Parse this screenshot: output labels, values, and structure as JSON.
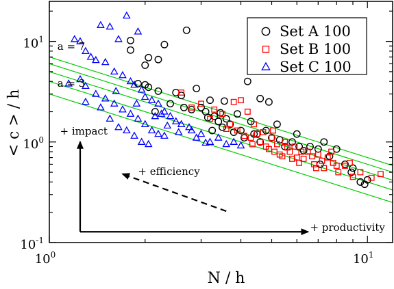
{
  "chart_data": {
    "type": "scatter",
    "xlabel": "N / h",
    "ylabel": "< c > / h",
    "xscale": "log",
    "yscale": "log",
    "xlim": [
      1,
      12
    ],
    "ylim": [
      0.1,
      25
    ],
    "grid": false,
    "legend_position": "top-right",
    "x_ticks": [
      {
        "base": "10",
        "exp": "0",
        "value": 1
      },
      {
        "base": "10",
        "exp": "1",
        "value": 10
      }
    ],
    "y_ticks": [
      {
        "base": "10",
        "exp": "-1",
        "value": 0.1
      },
      {
        "base": "10",
        "exp": "0",
        "value": 1
      },
      {
        "base": "10",
        "exp": "1",
        "value": 10
      }
    ],
    "reference_lines": {
      "color": "#00cc00",
      "slope": -1,
      "intercepts": [
        3,
        4,
        5,
        6,
        7
      ],
      "labels": [
        {
          "text": "a = 7",
          "a": 7
        },
        {
          "text": "a = 3",
          "a": 3
        }
      ]
    },
    "annotations": [
      {
        "text": "+ impact",
        "x": 1.08,
        "y": 1.18
      },
      {
        "text": "+ efficiency",
        "x": 1.9,
        "y": 0.47
      },
      {
        "text": "+ productivity",
        "x": 6.6,
        "y": 0.13
      }
    ],
    "arrows": [
      {
        "name": "impact",
        "from": [
          1.25,
          0.128
        ],
        "to": [
          1.25,
          1.0
        ],
        "style": "solid"
      },
      {
        "name": "productivity",
        "from": [
          1.25,
          0.128
        ],
        "to": [
          6.5,
          0.128
        ],
        "style": "solid"
      },
      {
        "name": "efficiency",
        "from": [
          3.6,
          0.205
        ],
        "to": [
          1.7,
          0.48
        ],
        "style": "dashed"
      }
    ],
    "series": [
      {
        "name": "Set A 100",
        "marker": "circle",
        "color": "#000000",
        "points": [
          [
            1.8,
            10.2
          ],
          [
            1.8,
            8.2
          ],
          [
            2.05,
            6.9
          ],
          [
            2.0,
            5.8
          ],
          [
            2.2,
            6.6
          ],
          [
            2.3,
            9.3
          ],
          [
            2.7,
            12.9
          ],
          [
            1.9,
            3.8
          ],
          [
            2.0,
            3.7
          ],
          [
            2.05,
            3.5
          ],
          [
            2.2,
            3.2
          ],
          [
            2.5,
            3.1
          ],
          [
            2.6,
            2.9
          ],
          [
            2.9,
            3.4
          ],
          [
            3.0,
            2.2
          ],
          [
            3.2,
            2.6
          ],
          [
            3.1,
            2.0
          ],
          [
            3.3,
            1.8
          ],
          [
            3.4,
            1.6
          ],
          [
            3.5,
            1.4
          ],
          [
            3.6,
            1.7
          ],
          [
            3.7,
            1.5
          ],
          [
            3.9,
            1.9
          ],
          [
            4.0,
            1.3
          ],
          [
            4.1,
            1.1
          ],
          [
            4.3,
            1.6
          ],
          [
            4.4,
            1.2
          ],
          [
            4.6,
            1.0
          ],
          [
            4.8,
            1.3
          ],
          [
            5.0,
            1.1
          ],
          [
            5.2,
            1.5
          ],
          [
            5.5,
            0.9
          ],
          [
            5.8,
            1.0
          ],
          [
            6.0,
            1.2
          ],
          [
            6.3,
            0.82
          ],
          [
            6.6,
            0.9
          ],
          [
            7.0,
            0.85
          ],
          [
            7.3,
            1.0
          ],
          [
            7.6,
            0.72
          ],
          [
            8.0,
            0.85
          ],
          [
            8.5,
            0.6
          ],
          [
            9.0,
            0.55
          ],
          [
            9.5,
            0.4
          ],
          [
            10.0,
            0.42
          ],
          [
            2.4,
            2.4
          ],
          [
            2.8,
            2.1
          ],
          [
            3.15,
            1.75
          ],
          [
            3.45,
            1.95
          ],
          [
            4.2,
            4.0
          ],
          [
            4.6,
            2.7
          ],
          [
            4.9,
            2.5
          ],
          [
            2.15,
            2.0
          ],
          [
            3.25,
            1.3
          ],
          [
            3.8,
            1.25
          ],
          [
            4.5,
            1.2
          ],
          [
            5.3,
            1.05
          ],
          [
            6.1,
            0.9
          ],
          [
            7.1,
            0.6
          ],
          [
            8.9,
            0.5
          ],
          [
            9.8,
            0.38
          ],
          [
            3.55,
            2.55
          ],
          [
            2.65,
            2.2
          ]
        ]
      },
      {
        "name": "Set B 100",
        "marker": "square",
        "color": "#ff0000",
        "points": [
          [
            2.6,
            3.1
          ],
          [
            3.0,
            2.4
          ],
          [
            3.3,
            2.1
          ],
          [
            3.5,
            1.9
          ],
          [
            3.8,
            2.5
          ],
          [
            4.0,
            2.6
          ],
          [
            4.2,
            2.0
          ],
          [
            4.4,
            1.5
          ],
          [
            4.5,
            1.2
          ],
          [
            4.6,
            1.0
          ],
          [
            4.8,
            0.9
          ],
          [
            5.0,
            1.1
          ],
          [
            5.1,
            0.8
          ],
          [
            5.3,
            0.75
          ],
          [
            5.5,
            1.0
          ],
          [
            5.7,
            0.8
          ],
          [
            5.9,
            0.9
          ],
          [
            6.0,
            0.7
          ],
          [
            6.3,
            0.68
          ],
          [
            6.5,
            0.8
          ],
          [
            6.8,
            0.6
          ],
          [
            7.0,
            0.75
          ],
          [
            7.3,
            0.55
          ],
          [
            7.5,
            0.7
          ],
          [
            7.8,
            0.62
          ],
          [
            8.1,
            0.5
          ],
          [
            8.5,
            0.58
          ],
          [
            9.0,
            0.45
          ],
          [
            9.5,
            0.5
          ],
          [
            10.3,
            0.44
          ],
          [
            11.0,
            0.48
          ],
          [
            3.9,
            1.3
          ],
          [
            4.3,
            1.1
          ],
          [
            4.7,
            1.25
          ],
          [
            5.2,
            0.95
          ],
          [
            5.6,
            0.88
          ],
          [
            6.2,
            0.8
          ],
          [
            6.7,
            0.72
          ],
          [
            7.2,
            0.65
          ],
          [
            8.0,
            0.58
          ],
          [
            4.1,
            1.15
          ],
          [
            4.9,
            0.85
          ],
          [
            5.4,
            0.72
          ],
          [
            6.1,
            0.62
          ],
          [
            6.9,
            0.55
          ],
          [
            3.7,
            1.5
          ],
          [
            4.35,
            0.95
          ],
          [
            5.8,
            0.68
          ],
          [
            3.2,
            1.7
          ],
          [
            3.6,
            1.35
          ],
          [
            2.8,
            2.2
          ],
          [
            5.05,
            1.3
          ],
          [
            7.7,
            0.8
          ],
          [
            8.8,
            0.62
          ]
        ]
      },
      {
        "name": "Set C 100",
        "marker": "triangle",
        "color": "#0000ff",
        "points": [
          [
            1.2,
            10.5
          ],
          [
            1.25,
            10.0
          ],
          [
            1.3,
            8.0
          ],
          [
            1.45,
            14.5
          ],
          [
            1.55,
            14.0
          ],
          [
            1.65,
            10.5
          ],
          [
            1.75,
            18.0
          ],
          [
            1.9,
            12.5
          ],
          [
            1.35,
            7.0
          ],
          [
            1.4,
            6.5
          ],
          [
            1.5,
            6.2
          ],
          [
            1.6,
            5.0
          ],
          [
            1.7,
            4.6
          ],
          [
            1.8,
            4.0
          ],
          [
            1.85,
            3.7
          ],
          [
            1.95,
            3.3
          ],
          [
            2.0,
            2.8
          ],
          [
            2.1,
            2.6
          ],
          [
            2.2,
            2.4
          ],
          [
            2.3,
            2.0
          ],
          [
            2.4,
            1.8
          ],
          [
            2.5,
            1.6
          ],
          [
            1.25,
            4.2
          ],
          [
            1.3,
            3.6
          ],
          [
            1.4,
            3.0
          ],
          [
            1.5,
            2.7
          ],
          [
            1.6,
            2.4
          ],
          [
            1.7,
            2.1
          ],
          [
            1.8,
            1.9
          ],
          [
            1.9,
            1.7
          ],
          [
            2.0,
            1.5
          ],
          [
            2.1,
            1.3
          ],
          [
            2.2,
            1.2
          ],
          [
            2.3,
            1.15
          ],
          [
            1.55,
            1.7
          ],
          [
            1.65,
            1.4
          ],
          [
            1.75,
            1.3
          ],
          [
            1.85,
            1.15
          ],
          [
            1.95,
            1.0
          ],
          [
            2.05,
            0.95
          ],
          [
            2.6,
            1.5
          ],
          [
            2.8,
            1.3
          ],
          [
            3.0,
            1.2
          ],
          [
            3.2,
            1.0
          ],
          [
            3.4,
            1.1
          ],
          [
            3.6,
            0.95
          ],
          [
            3.8,
            1.0
          ],
          [
            4.0,
            0.92
          ],
          [
            1.3,
            2.5
          ],
          [
            1.45,
            2.2
          ],
          [
            2.15,
            1.8
          ],
          [
            2.35,
            1.45
          ],
          [
            2.55,
            1.25
          ],
          [
            2.75,
            1.4
          ],
          [
            2.9,
            1.1
          ],
          [
            3.1,
            0.98
          ],
          [
            1.15,
            3.8
          ],
          [
            1.62,
            3.2
          ],
          [
            1.88,
            2.4
          ],
          [
            2.25,
            1.9
          ]
        ]
      }
    ]
  }
}
